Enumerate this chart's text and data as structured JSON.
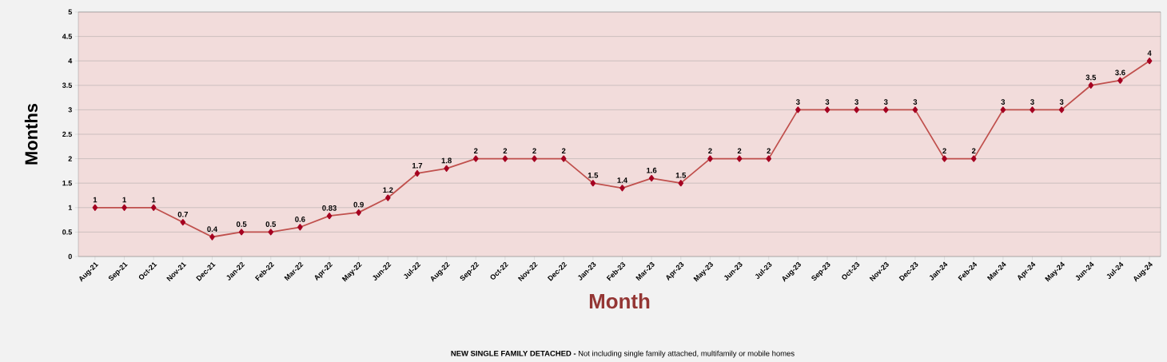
{
  "chart_data": {
    "type": "line",
    "xlabel": "Month",
    "ylabel": "Months",
    "annotations": [
      "**NEW SINGLE FAMILY DETACHED -** Not including single family attached, multifamily or mobile homes"
    ],
    "categories": [
      "Aug-21",
      "Sep-21",
      "Oct-21",
      "Nov-21",
      "Dec-21",
      "Jan-22",
      "Feb-22",
      "Mar-22",
      "Apr-22",
      "May-22",
      "Jun-22",
      "Jul-22",
      "Aug-22",
      "Sep-22",
      "Oct-22",
      "Nov-22",
      "Dec-22",
      "Jan-23",
      "Feb-23",
      "Mar-23",
      "Apr-23",
      "May-23",
      "Jun-23",
      "Jul-23",
      "Aug-23",
      "Sep-23",
      "Oct-23",
      "Nov-23",
      "Dec-23",
      "Jan-24",
      "Feb-24",
      "Mar-24",
      "Apr-24",
      "May-24",
      "Jun-24",
      "Jul-24",
      "Aug-24"
    ],
    "values": [
      1,
      1,
      1,
      0.7,
      0.4,
      0.5,
      0.5,
      0.6,
      0.83,
      0.9,
      1.2,
      1.7,
      1.8,
      2,
      2,
      2,
      2,
      1.5,
      1.4,
      1.6,
      1.5,
      2,
      2,
      2,
      3,
      3,
      3,
      3,
      3,
      2,
      2,
      3,
      3,
      3,
      3.5,
      3.6,
      4
    ],
    "color": "#c0504d",
    "marker": "diamond",
    "line_style": "solid",
    "ylim": [
      0,
      5
    ],
    "yticks": [
      0,
      0.5,
      1,
      1.5,
      2,
      2.5,
      3,
      3.5,
      4,
      4.5,
      5
    ],
    "grid": "y",
    "data_labels": true
  }
}
